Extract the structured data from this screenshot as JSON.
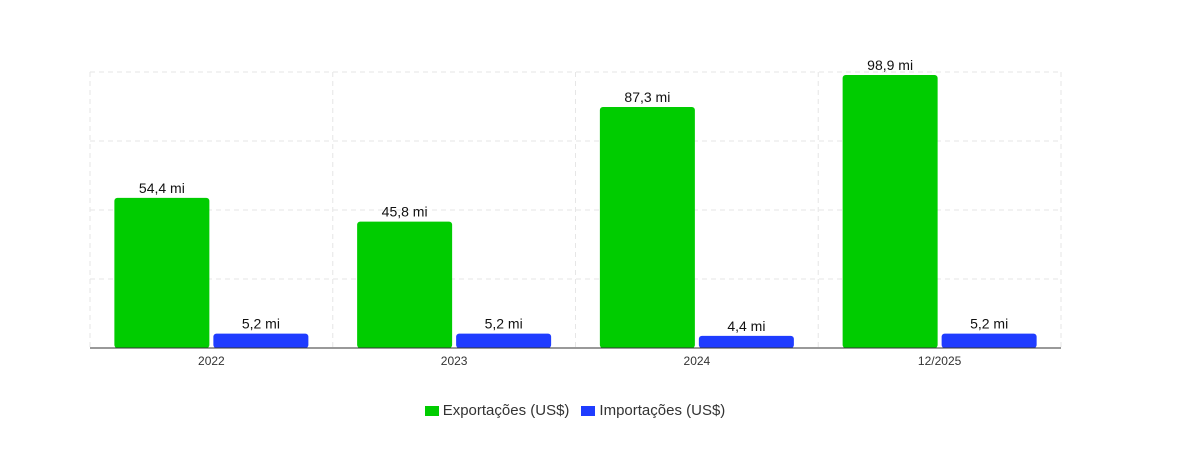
{
  "chart_data": {
    "type": "bar",
    "categories": [
      "2022",
      "2023",
      "2024",
      "12/2025"
    ],
    "series": [
      {
        "name": "Exportações (US$)",
        "color": "#00cc00",
        "values": [
          54.4,
          45.8,
          87.3,
          98.9
        ],
        "labels": [
          "54,4 mi",
          "45,8 mi",
          "87,3 mi",
          "98,9 mi"
        ]
      },
      {
        "name": "Importações (US$)",
        "color": "#1f3cff",
        "values": [
          5.2,
          5.2,
          4.4,
          5.2
        ],
        "labels": [
          "5,2 mi",
          "5,2 mi",
          "4,4 mi",
          "5,2 mi"
        ]
      }
    ],
    "ylim": [
      0,
      100
    ],
    "grid": true,
    "legend": "bottom-center",
    "title": "",
    "xlabel": "",
    "ylabel": ""
  }
}
